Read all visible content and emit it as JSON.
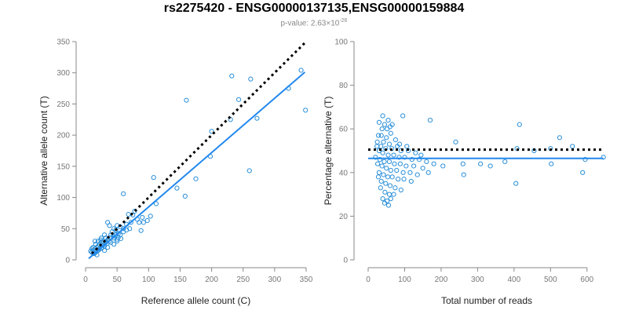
{
  "header": {
    "title": "rs2275420 - ENSG00000137135,ENSG00000159884",
    "pvalue_prefix": "p-value: ",
    "pvalue_mantissa": "2.63",
    "pvalue_times": "×10",
    "pvalue_exponent": "-26"
  },
  "colors": {
    "points": "#2a8fd9",
    "fit_line": "#2288ee",
    "reference_line": "#000000"
  },
  "chart_data": [
    {
      "type": "scatter",
      "title": "",
      "xlabel": "Reference allele count (C)",
      "ylabel": "Alternative allele count (T)",
      "xlim": [
        0,
        350
      ],
      "ylim": [
        0,
        350
      ],
      "xticks": [
        0,
        50,
        100,
        150,
        200,
        250,
        300,
        350
      ],
      "yticks": [
        0,
        50,
        100,
        150,
        200,
        250,
        300,
        350
      ],
      "fit_line": {
        "x": [
          5,
          348
        ],
        "y": [
          2,
          301
        ]
      },
      "reference_line": {
        "x": [
          10,
          348
        ],
        "y": [
          10,
          348
        ],
        "style": "dotted"
      },
      "points": [
        [
          232,
          295
        ],
        [
          262,
          290
        ],
        [
          342,
          304
        ],
        [
          349,
          240
        ],
        [
          322,
          275
        ],
        [
          160,
          256
        ],
        [
          243,
          257
        ],
        [
          272,
          227
        ],
        [
          230,
          225
        ],
        [
          200,
          206
        ],
        [
          198,
          166
        ],
        [
          260,
          143
        ],
        [
          108,
          132
        ],
        [
          158,
          102
        ],
        [
          175,
          130
        ],
        [
          145,
          115
        ],
        [
          60,
          106
        ],
        [
          112,
          90
        ],
        [
          68,
          73
        ],
        [
          75,
          72
        ],
        [
          78,
          78
        ],
        [
          82,
          65
        ],
        [
          90,
          68
        ],
        [
          98,
          63
        ],
        [
          103,
          70
        ],
        [
          85,
          60
        ],
        [
          92,
          60
        ],
        [
          72,
          60
        ],
        [
          65,
          57
        ],
        [
          88,
          47
        ],
        [
          55,
          53
        ],
        [
          60,
          50
        ],
        [
          50,
          55
        ],
        [
          45,
          50
        ],
        [
          48,
          48
        ],
        [
          35,
          60
        ],
        [
          38,
          55
        ],
        [
          42,
          45
        ],
        [
          40,
          40
        ],
        [
          55,
          40
        ],
        [
          52,
          42
        ],
        [
          60,
          45
        ],
        [
          65,
          48
        ],
        [
          70,
          50
        ],
        [
          30,
          40
        ],
        [
          32,
          35
        ],
        [
          35,
          32
        ],
        [
          38,
          30
        ],
        [
          40,
          28
        ],
        [
          45,
          35
        ],
        [
          50,
          33
        ],
        [
          28,
          30
        ],
        [
          25,
          28
        ],
        [
          22,
          25
        ],
        [
          20,
          22
        ],
        [
          18,
          20
        ],
        [
          15,
          18
        ],
        [
          12,
          15
        ],
        [
          10,
          12
        ],
        [
          14,
          10
        ],
        [
          18,
          14
        ],
        [
          22,
          18
        ],
        [
          26,
          20
        ],
        [
          30,
          22
        ],
        [
          34,
          26
        ],
        [
          20,
          30
        ],
        [
          24,
          32
        ],
        [
          16,
          25
        ],
        [
          12,
          20
        ],
        [
          10,
          18
        ],
        [
          8,
          14
        ],
        [
          12,
          10
        ],
        [
          16,
          12
        ],
        [
          20,
          15
        ],
        [
          25,
          18
        ],
        [
          28,
          24
        ],
        [
          32,
          28
        ],
        [
          36,
          32
        ],
        [
          40,
          36
        ],
        [
          44,
          38
        ],
        [
          48,
          40
        ],
        [
          52,
          36
        ],
        [
          56,
          34
        ],
        [
          30,
          15
        ],
        [
          35,
          20
        ],
        [
          45,
          25
        ],
        [
          50,
          30
        ],
        [
          25,
          35
        ],
        [
          15,
          30
        ],
        [
          18,
          8
        ]
      ]
    },
    {
      "type": "scatter",
      "title": "",
      "xlabel": "Total number of reads",
      "ylabel": "Percentage alternative (T)",
      "xlim": [
        0,
        650
      ],
      "ylim": [
        0,
        100
      ],
      "xticks": [
        0,
        100,
        200,
        300,
        400,
        500,
        600
      ],
      "yticks": [
        0,
        20,
        40,
        60,
        80,
        100
      ],
      "fit_line": {
        "x": [
          0,
          645
        ],
        "y": [
          46.5,
          46.5
        ]
      },
      "reference_line": {
        "x": [
          0,
          645
        ],
        "y": [
          50.5,
          50.5
        ],
        "style": "dotted"
      },
      "points": [
        [
          40,
          66
        ],
        [
          55,
          64
        ],
        [
          30,
          63
        ],
        [
          45,
          62
        ],
        [
          60,
          61
        ],
        [
          95,
          66
        ],
        [
          170,
          64
        ],
        [
          38,
          60
        ],
        [
          62,
          58
        ],
        [
          28,
          57
        ],
        [
          50,
          56
        ],
        [
          75,
          55
        ],
        [
          25,
          54
        ],
        [
          42,
          54
        ],
        [
          58,
          53
        ],
        [
          80,
          52
        ],
        [
          35,
          52
        ],
        [
          48,
          51
        ],
        [
          65,
          51
        ],
        [
          90,
          50
        ],
        [
          110,
          50
        ],
        [
          130,
          49
        ],
        [
          30,
          50
        ],
        [
          40,
          49
        ],
        [
          55,
          48
        ],
        [
          70,
          48
        ],
        [
          85,
          47
        ],
        [
          100,
          47
        ],
        [
          120,
          46
        ],
        [
          140,
          46
        ],
        [
          20,
          47
        ],
        [
          32,
          46
        ],
        [
          44,
          45
        ],
        [
          58,
          45
        ],
        [
          72,
          44
        ],
        [
          88,
          44
        ],
        [
          104,
          43
        ],
        [
          125,
          43
        ],
        [
          150,
          42
        ],
        [
          26,
          44
        ],
        [
          38,
          43
        ],
        [
          50,
          42
        ],
        [
          62,
          41
        ],
        [
          78,
          41
        ],
        [
          96,
          40
        ],
        [
          115,
          40
        ],
        [
          135,
          39
        ],
        [
          165,
          40
        ],
        [
          30,
          40
        ],
        [
          42,
          39
        ],
        [
          54,
          38
        ],
        [
          66,
          38
        ],
        [
          82,
          37
        ],
        [
          98,
          37
        ],
        [
          118,
          36
        ],
        [
          28,
          38
        ],
        [
          36,
          36
        ],
        [
          48,
          35
        ],
        [
          60,
          34
        ],
        [
          74,
          33
        ],
        [
          90,
          32
        ],
        [
          34,
          33
        ],
        [
          46,
          31
        ],
        [
          58,
          30
        ],
        [
          40,
          28
        ],
        [
          52,
          27
        ],
        [
          45,
          26
        ],
        [
          56,
          25
        ],
        [
          62,
          28
        ],
        [
          70,
          30
        ],
        [
          24,
          52
        ],
        [
          36,
          57
        ],
        [
          66,
          62
        ],
        [
          52,
          60
        ],
        [
          86,
          53
        ],
        [
          106,
          52
        ],
        [
          145,
          48
        ],
        [
          160,
          45
        ],
        [
          180,
          44
        ],
        [
          205,
          43
        ],
        [
          240,
          54
        ],
        [
          260,
          44
        ],
        [
          262,
          39
        ],
        [
          308,
          44
        ],
        [
          335,
          43
        ],
        [
          375,
          45
        ],
        [
          408,
          51
        ],
        [
          415,
          62
        ],
        [
          405,
          35
        ],
        [
          455,
          50
        ],
        [
          500,
          51
        ],
        [
          502,
          44
        ],
        [
          525,
          56
        ],
        [
          560,
          52
        ],
        [
          588,
          40
        ],
        [
          595,
          46
        ],
        [
          645,
          47
        ]
      ]
    }
  ]
}
